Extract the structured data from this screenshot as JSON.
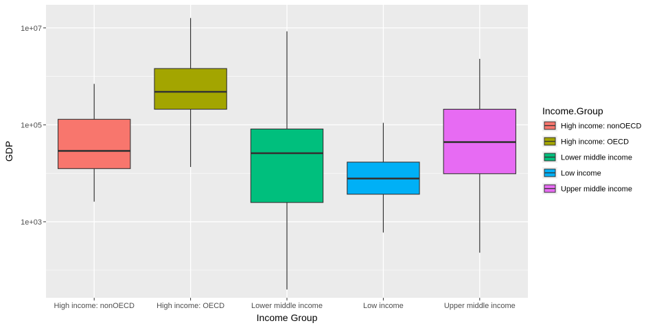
{
  "chart_data": {
    "type": "boxplot",
    "title": "",
    "xlabel": "Income Group",
    "ylabel": "GDP",
    "y_scale": "log10",
    "ylim": [
      27,
      30000000
    ],
    "y_ticks": [
      {
        "value": 1000,
        "label": "1e+03"
      },
      {
        "value": 100000,
        "label": "1e+05"
      },
      {
        "value": 10000000,
        "label": "1e+07"
      }
    ],
    "y_minor_ticks": [
      100,
      10000,
      1000000
    ],
    "grid": true,
    "legend": {
      "title": "Income.Group",
      "position": "right"
    },
    "groups": [
      {
        "category": "High income: nonOECD",
        "color": "#F8766D",
        "whisker_low": 2600,
        "q1": 12500,
        "median": 29000,
        "q3": 130000,
        "whisker_high": 700000
      },
      {
        "category": "High income: OECD",
        "color": "#A3A500",
        "whisker_low": 13500,
        "q1": 210000,
        "median": 480000,
        "q3": 1450000,
        "whisker_high": 16000000
      },
      {
        "category": "Lower middle income",
        "color": "#00BF7D",
        "whisker_low": 40,
        "q1": 2500,
        "median": 26000,
        "q3": 82000,
        "whisker_high": 8500000
      },
      {
        "category": "Low income",
        "color": "#00B0F6",
        "whisker_low": 600,
        "q1": 3700,
        "median": 7800,
        "q3": 17000,
        "whisker_high": 110000
      },
      {
        "category": "Upper middle income",
        "color": "#E76BF3",
        "whisker_low": 230,
        "q1": 9800,
        "median": 44000,
        "q3": 210000,
        "whisker_high": 2300000
      }
    ]
  }
}
